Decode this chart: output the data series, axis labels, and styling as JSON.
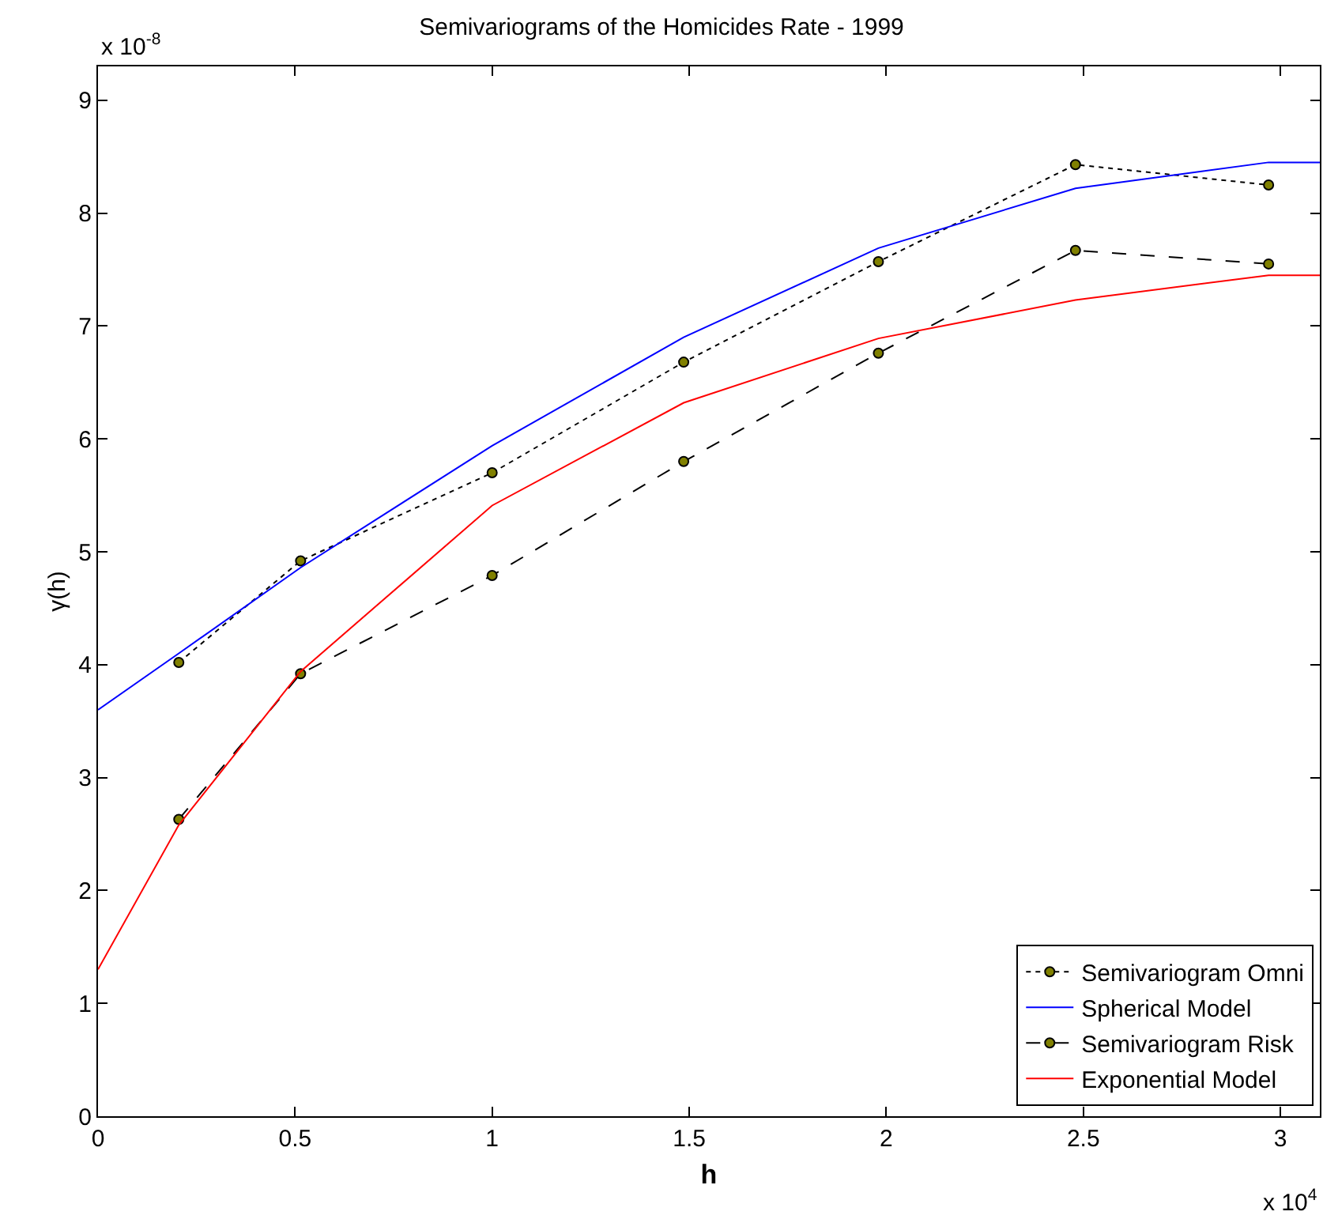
{
  "chart_data": {
    "type": "line",
    "title": "Semivariograms of the Homicides Rate - 1999",
    "xlabel": "h",
    "ylabel": "γ(h)",
    "annotations": [
      "x 10$^{-8}$",
      "x 10$^{4}$"
    ],
    "xlim": [
      0,
      3.1
    ],
    "xticks": [
      0,
      0.5,
      1,
      1.5,
      2,
      2.5,
      3
    ],
    "ylim": [
      0,
      9.3
    ],
    "yticks": [
      0,
      1,
      2,
      3,
      4,
      5,
      6,
      7,
      8,
      9
    ],
    "grid": false,
    "legend": "bottom right",
    "series": [
      {
        "name": "Semivariogram Omni",
        "color": "#000000",
        "line_style": "dotted",
        "marker": "circle",
        "colors": [
          "#808000",
          "#808000",
          "#808000",
          "#808000",
          "#808000",
          "#808000",
          "#808000"
        ],
        "x": [
          0.205,
          0.514,
          1.0,
          1.486,
          1.98,
          2.48,
          2.97
        ],
        "values": [
          4.02,
          4.92,
          5.7,
          6.68,
          7.57,
          8.43,
          8.25
        ]
      },
      {
        "name": "Spherical Model",
        "color": "#0000ff",
        "line_style": "solid",
        "marker": "none",
        "x": [
          0,
          0.205,
          0.514,
          1.0,
          1.486,
          1.98,
          2.48,
          2.97,
          3.1
        ],
        "values": [
          3.6,
          4.1,
          4.86,
          5.94,
          6.9,
          7.69,
          8.22,
          8.45,
          8.45
        ]
      },
      {
        "name": "Semivariogram Risk",
        "color": "#000000",
        "line_style": "dashed",
        "marker": "circle",
        "colors": [
          "#808000",
          "#808000",
          "#808000",
          "#808000",
          "#808000",
          "#808000",
          "#808000"
        ],
        "x": [
          0.205,
          0.514,
          1.0,
          1.486,
          1.98,
          2.48,
          2.97
        ],
        "values": [
          2.63,
          3.92,
          4.79,
          5.8,
          6.76,
          7.67,
          7.55
        ]
      },
      {
        "name": "Exponential Model",
        "color": "#ff0000",
        "line_style": "solid",
        "marker": "none",
        "x": [
          0,
          0.205,
          0.514,
          1.0,
          1.486,
          1.98,
          2.48,
          2.97,
          3.1
        ],
        "values": [
          1.3,
          2.58,
          3.94,
          5.41,
          6.32,
          6.89,
          7.23,
          7.45,
          7.45
        ]
      }
    ]
  }
}
